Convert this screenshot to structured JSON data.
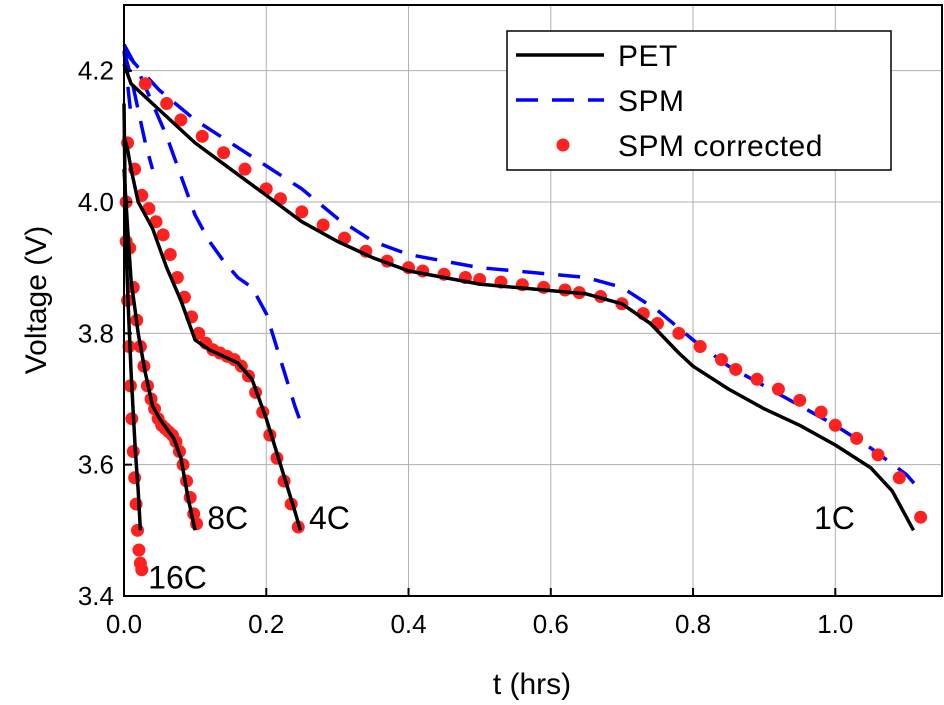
{
  "chart_data": {
    "type": "line",
    "xlabel": "t (hrs)",
    "ylabel": "Voltage (V)",
    "xlim": [
      0.0,
      1.15
    ],
    "ylim": [
      3.4,
      4.3
    ],
    "xticks": [
      "0.0",
      "0.2",
      "0.4",
      "0.6",
      "0.8",
      "1.0"
    ],
    "xtick_values": [
      0.0,
      0.2,
      0.4,
      0.6,
      0.8,
      1.0
    ],
    "yticks": [
      "3.4",
      "3.6",
      "3.8",
      "4.0",
      "4.2"
    ],
    "ytick_values": [
      3.4,
      3.6,
      3.8,
      4.0,
      4.2
    ],
    "grid": true,
    "legend_position": "top-right",
    "legend": [
      {
        "key": "pet",
        "label": "PET"
      },
      {
        "key": "spm",
        "label": "SPM"
      },
      {
        "key": "spmc",
        "label": "SPM corrected"
      }
    ],
    "colors": {
      "pet": "#000000",
      "spm": "#0000ff",
      "spmc": "#ff2020"
    },
    "annotations": [
      {
        "text": "1C",
        "x": 0.97,
        "y": 3.52
      },
      {
        "text": "4C",
        "x": 0.26,
        "y": 3.52
      },
      {
        "text": "8C",
        "x": 0.117,
        "y": 3.52
      },
      {
        "text": "16C",
        "x": 0.034,
        "y": 3.43
      }
    ],
    "series": [
      {
        "rate": "1C",
        "kind": "pet",
        "name": "PET",
        "x": [
          0,
          0.01,
          0.05,
          0.1,
          0.15,
          0.2,
          0.25,
          0.3,
          0.35,
          0.4,
          0.45,
          0.5,
          0.55,
          0.6,
          0.65,
          0.7,
          0.74,
          0.78,
          0.8,
          0.85,
          0.9,
          0.95,
          1.0,
          1.05,
          1.08,
          1.11
        ],
        "y": [
          4.21,
          4.18,
          4.14,
          4.09,
          4.05,
          4.01,
          3.97,
          3.94,
          3.915,
          3.895,
          3.885,
          3.875,
          3.87,
          3.865,
          3.86,
          3.845,
          3.815,
          3.77,
          3.75,
          3.715,
          3.685,
          3.66,
          3.63,
          3.595,
          3.56,
          3.5
        ]
      },
      {
        "rate": "1C",
        "kind": "spm",
        "name": "SPM",
        "x": [
          0,
          0.02,
          0.05,
          0.1,
          0.15,
          0.2,
          0.25,
          0.3,
          0.35,
          0.4,
          0.45,
          0.5,
          0.55,
          0.6,
          0.65,
          0.7,
          0.75,
          0.8,
          0.85,
          0.9,
          0.95,
          1.0,
          1.05,
          1.1,
          1.12
        ],
        "y": [
          4.23,
          4.205,
          4.17,
          4.125,
          4.09,
          4.055,
          4.02,
          3.975,
          3.94,
          3.92,
          3.91,
          3.9,
          3.895,
          3.89,
          3.885,
          3.87,
          3.835,
          3.79,
          3.75,
          3.72,
          3.69,
          3.66,
          3.625,
          3.585,
          3.56
        ]
      },
      {
        "rate": "1C",
        "kind": "spmc",
        "name": "SPM corrected",
        "x": [
          0.03,
          0.06,
          0.08,
          0.11,
          0.14,
          0.17,
          0.2,
          0.22,
          0.25,
          0.28,
          0.31,
          0.34,
          0.37,
          0.4,
          0.42,
          0.45,
          0.48,
          0.5,
          0.53,
          0.56,
          0.59,
          0.62,
          0.64,
          0.67,
          0.7,
          0.73,
          0.75,
          0.78,
          0.81,
          0.84,
          0.86,
          0.89,
          0.92,
          0.95,
          0.98,
          1.0,
          1.03,
          1.06,
          1.09,
          1.12
        ],
        "y": [
          4.18,
          4.15,
          4.125,
          4.1,
          4.075,
          4.05,
          4.02,
          4.005,
          3.985,
          3.965,
          3.945,
          3.925,
          3.91,
          3.9,
          3.895,
          3.89,
          3.885,
          3.882,
          3.878,
          3.874,
          3.87,
          3.866,
          3.862,
          3.856,
          3.845,
          3.83,
          3.815,
          3.8,
          3.78,
          3.76,
          3.745,
          3.73,
          3.715,
          3.698,
          3.68,
          3.66,
          3.64,
          3.615,
          3.58,
          3.52
        ]
      },
      {
        "rate": "4C",
        "kind": "pet",
        "name": "PET",
        "x": [
          0,
          0.005,
          0.01,
          0.02,
          0.04,
          0.06,
          0.08,
          0.1,
          0.12,
          0.14,
          0.16,
          0.18,
          0.2,
          0.22,
          0.24,
          0.248
        ],
        "y": [
          4.1,
          4.08,
          4.05,
          4.0,
          3.96,
          3.9,
          3.85,
          3.79,
          3.775,
          3.765,
          3.755,
          3.73,
          3.67,
          3.6,
          3.53,
          3.5
        ]
      },
      {
        "rate": "4C",
        "kind": "spm",
        "name": "SPM",
        "x": [
          0,
          0.02,
          0.04,
          0.06,
          0.08,
          0.1,
          0.12,
          0.14,
          0.16,
          0.18,
          0.2,
          0.22,
          0.24,
          0.25
        ],
        "y": [
          4.24,
          4.2,
          4.15,
          4.1,
          4.04,
          3.98,
          3.94,
          3.91,
          3.885,
          3.87,
          3.83,
          3.76,
          3.69,
          3.66
        ]
      },
      {
        "rate": "4C",
        "kind": "spmc",
        "name": "SPM corrected",
        "x": [
          0.005,
          0.015,
          0.025,
          0.035,
          0.045,
          0.055,
          0.065,
          0.075,
          0.085,
          0.095,
          0.105,
          0.115,
          0.125,
          0.135,
          0.145,
          0.155,
          0.165,
          0.175,
          0.185,
          0.195,
          0.205,
          0.215,
          0.225,
          0.235,
          0.245
        ],
        "y": [
          4.09,
          4.05,
          4.01,
          3.99,
          3.97,
          3.95,
          3.92,
          3.885,
          3.855,
          3.825,
          3.8,
          3.785,
          3.775,
          3.77,
          3.765,
          3.76,
          3.75,
          3.735,
          3.71,
          3.68,
          3.645,
          3.61,
          3.575,
          3.54,
          3.505
        ]
      },
      {
        "rate": "8C",
        "kind": "pet",
        "name": "PET",
        "x": [
          0,
          0.005,
          0.01,
          0.015,
          0.02,
          0.03,
          0.04,
          0.05,
          0.06,
          0.07,
          0.08,
          0.09,
          0.1
        ],
        "y": [
          4.05,
          3.96,
          3.88,
          3.84,
          3.8,
          3.74,
          3.69,
          3.67,
          3.655,
          3.64,
          3.61,
          3.55,
          3.5
        ]
      },
      {
        "rate": "8C",
        "kind": "spm",
        "name": "SPM",
        "x": [
          0,
          0.01,
          0.02,
          0.03,
          0.04
        ],
        "y": [
          4.23,
          4.19,
          4.14,
          4.09,
          4.05
        ]
      },
      {
        "rate": "8C",
        "kind": "spmc",
        "name": "SPM corrected",
        "x": [
          0.003,
          0.008,
          0.013,
          0.018,
          0.023,
          0.028,
          0.033,
          0.038,
          0.043,
          0.048,
          0.053,
          0.058,
          0.063,
          0.068,
          0.073,
          0.078,
          0.083,
          0.088,
          0.093,
          0.098,
          0.102
        ],
        "y": [
          4.0,
          3.93,
          3.87,
          3.82,
          3.78,
          3.75,
          3.72,
          3.7,
          3.685,
          3.67,
          3.66,
          3.655,
          3.65,
          3.645,
          3.635,
          3.62,
          3.6,
          3.575,
          3.55,
          3.525,
          3.51
        ]
      },
      {
        "rate": "16C",
        "kind": "pet",
        "name": "PET",
        "x": [
          0,
          0.002,
          0.004,
          0.006,
          0.008,
          0.01,
          0.013,
          0.016,
          0.02,
          0.023
        ],
        "y": [
          4.15,
          3.98,
          3.9,
          3.84,
          3.79,
          3.74,
          3.68,
          3.62,
          3.56,
          3.5
        ]
      },
      {
        "rate": "16C",
        "kind": "spm",
        "name": "SPM",
        "x": [
          0,
          0.005,
          0.01
        ],
        "y": [
          4.23,
          4.18,
          4.13
        ]
      },
      {
        "rate": "16C",
        "kind": "spmc",
        "name": "SPM corrected",
        "x": [
          0.003,
          0.005,
          0.007,
          0.009,
          0.011,
          0.013,
          0.015,
          0.017,
          0.019,
          0.021,
          0.023,
          0.025
        ],
        "y": [
          3.94,
          3.85,
          3.78,
          3.72,
          3.67,
          3.62,
          3.58,
          3.54,
          3.5,
          3.47,
          3.45,
          3.44
        ]
      }
    ]
  }
}
